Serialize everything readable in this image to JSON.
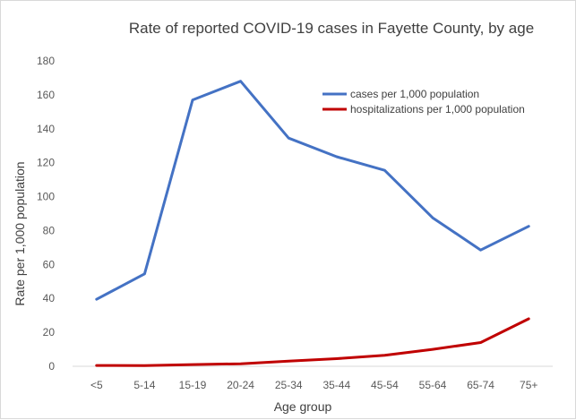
{
  "chart_data": {
    "type": "line",
    "title": "Rate of reported COVID-19 cases in Fayette County, by age",
    "xlabel": "Age group",
    "ylabel": "Rate per 1,000 population",
    "categories": [
      "<5",
      "5-14",
      "15-19",
      "20-24",
      "25-34",
      "35-44",
      "45-54",
      "55-64",
      "65-74",
      "75+"
    ],
    "ylim": [
      0,
      180
    ],
    "yticks": [
      "0",
      "20",
      "40",
      "60",
      "80",
      "100",
      "120",
      "140",
      "160",
      "180"
    ],
    "grid": false,
    "legend_position": "top-right",
    "series": [
      {
        "name": "cases per 1,000 population",
        "color": "#4472c4",
        "values": [
          39.5,
          54.5,
          157,
          168,
          134.5,
          123.5,
          115.5,
          87.5,
          68.5,
          82.5
        ]
      },
      {
        "name": "hospitalizations per 1,000 population",
        "color": "#c00000",
        "values": [
          0.5,
          0.4,
          1.0,
          1.5,
          3.0,
          4.5,
          6.5,
          10.0,
          14.0,
          28.0
        ]
      }
    ]
  }
}
